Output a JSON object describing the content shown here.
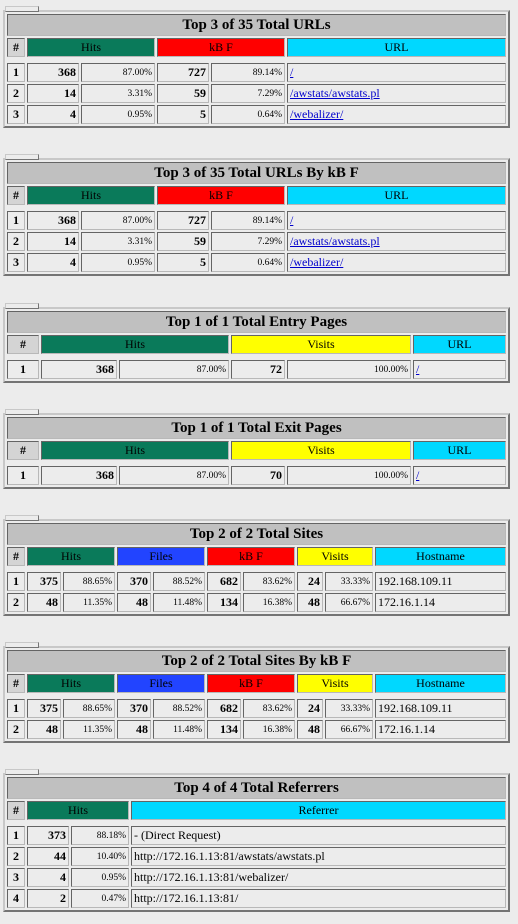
{
  "colors": {
    "hits": "#0a7a5a",
    "kbf": "#ff0000",
    "url": "#00d8ff",
    "visits": "#ffff00",
    "files": "#2244ff"
  },
  "urls": {
    "title": "Top 3 of 35 Total URLs",
    "headers": {
      "rank": "#",
      "hits": "Hits",
      "kbf": "kB F",
      "url": "URL"
    },
    "rows": [
      {
        "rank": "1",
        "hits": "368",
        "hits_pct": "87.00%",
        "kbf": "727",
        "kbf_pct": "89.14%",
        "url": "/"
      },
      {
        "rank": "2",
        "hits": "14",
        "hits_pct": "3.31%",
        "kbf": "59",
        "kbf_pct": "7.29%",
        "url": "/awstats/awstats.pl"
      },
      {
        "rank": "3",
        "hits": "4",
        "hits_pct": "0.95%",
        "kbf": "5",
        "kbf_pct": "0.64%",
        "url": "/webalizer/"
      }
    ]
  },
  "urls_kb": {
    "title": "Top 3 of 35 Total URLs By kB F",
    "headers": {
      "rank": "#",
      "hits": "Hits",
      "kbf": "kB F",
      "url": "URL"
    },
    "rows": [
      {
        "rank": "1",
        "hits": "368",
        "hits_pct": "87.00%",
        "kbf": "727",
        "kbf_pct": "89.14%",
        "url": "/"
      },
      {
        "rank": "2",
        "hits": "14",
        "hits_pct": "3.31%",
        "kbf": "59",
        "kbf_pct": "7.29%",
        "url": "/awstats/awstats.pl"
      },
      {
        "rank": "3",
        "hits": "4",
        "hits_pct": "0.95%",
        "kbf": "5",
        "kbf_pct": "0.64%",
        "url": "/webalizer/"
      }
    ]
  },
  "entry": {
    "title": "Top 1 of 1 Total Entry Pages",
    "headers": {
      "rank": "#",
      "hits": "Hits",
      "visits": "Visits",
      "url": "URL"
    },
    "rows": [
      {
        "rank": "1",
        "hits": "368",
        "hits_pct": "87.00%",
        "visits": "72",
        "visits_pct": "100.00%",
        "url": "/"
      }
    ]
  },
  "exit": {
    "title": "Top 1 of 1 Total Exit Pages",
    "headers": {
      "rank": "#",
      "hits": "Hits",
      "visits": "Visits",
      "url": "URL"
    },
    "rows": [
      {
        "rank": "1",
        "hits": "368",
        "hits_pct": "87.00%",
        "visits": "70",
        "visits_pct": "100.00%",
        "url": "/"
      }
    ]
  },
  "sites": {
    "title": "Top 2 of 2 Total Sites",
    "headers": {
      "rank": "#",
      "hits": "Hits",
      "files": "Files",
      "kbf": "kB F",
      "visits": "Visits",
      "host": "Hostname"
    },
    "rows": [
      {
        "rank": "1",
        "hits": "375",
        "hits_pct": "88.65%",
        "files": "370",
        "files_pct": "88.52%",
        "kbf": "682",
        "kbf_pct": "83.62%",
        "visits": "24",
        "visits_pct": "33.33%",
        "host": "192.168.109.11"
      },
      {
        "rank": "2",
        "hits": "48",
        "hits_pct": "11.35%",
        "files": "48",
        "files_pct": "11.48%",
        "kbf": "134",
        "kbf_pct": "16.38%",
        "visits": "48",
        "visits_pct": "66.67%",
        "host": "172.16.1.14"
      }
    ]
  },
  "sites_kb": {
    "title": "Top 2 of 2 Total Sites By kB F",
    "headers": {
      "rank": "#",
      "hits": "Hits",
      "files": "Files",
      "kbf": "kB F",
      "visits": "Visits",
      "host": "Hostname"
    },
    "rows": [
      {
        "rank": "1",
        "hits": "375",
        "hits_pct": "88.65%",
        "files": "370",
        "files_pct": "88.52%",
        "kbf": "682",
        "kbf_pct": "83.62%",
        "visits": "24",
        "visits_pct": "33.33%",
        "host": "192.168.109.11"
      },
      {
        "rank": "2",
        "hits": "48",
        "hits_pct": "11.35%",
        "files": "48",
        "files_pct": "11.48%",
        "kbf": "134",
        "kbf_pct": "16.38%",
        "visits": "48",
        "visits_pct": "66.67%",
        "host": "172.16.1.14"
      }
    ]
  },
  "referrers": {
    "title": "Top 4 of 4 Total Referrers",
    "headers": {
      "rank": "#",
      "hits": "Hits",
      "ref": "Referrer"
    },
    "rows": [
      {
        "rank": "1",
        "hits": "373",
        "hits_pct": "88.18%",
        "ref": "- (Direct Request)"
      },
      {
        "rank": "2",
        "hits": "44",
        "hits_pct": "10.40%",
        "ref": "http://172.16.1.13:81/awstats/awstats.pl"
      },
      {
        "rank": "3",
        "hits": "4",
        "hits_pct": "0.95%",
        "ref": "http://172.16.1.13:81/webalizer/"
      },
      {
        "rank": "4",
        "hits": "2",
        "hits_pct": "0.47%",
        "ref": "http://172.16.1.13:81/"
      }
    ]
  }
}
